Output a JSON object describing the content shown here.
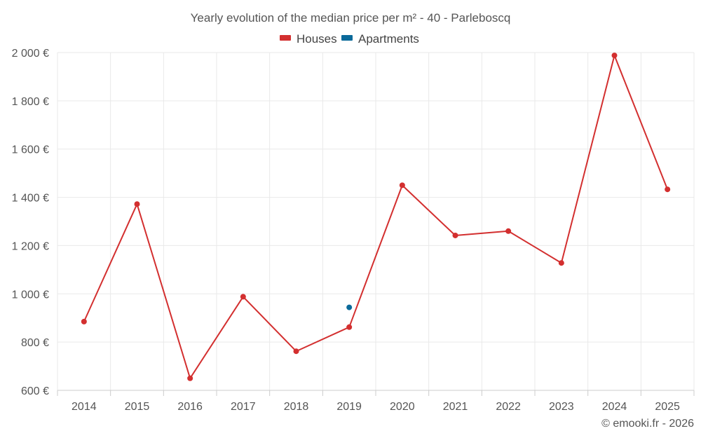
{
  "chart_data": {
    "type": "line",
    "title": "Yearly evolution of the median price per m² - 40 - Parleboscq",
    "categories": [
      "2014",
      "2015",
      "2016",
      "2017",
      "2018",
      "2019",
      "2020",
      "2021",
      "2022",
      "2023",
      "2024",
      "2025"
    ],
    "y_ticks": [
      600,
      800,
      1000,
      1200,
      1400,
      1600,
      1800,
      2000
    ],
    "y_tick_labels": [
      "600 €",
      "800 €",
      "1 000 €",
      "1 200 €",
      "1 400 €",
      "1 600 €",
      "1 800 €",
      "2 000 €"
    ],
    "ylim": [
      600,
      2000
    ],
    "grid": true,
    "legend_position": "top-center",
    "series": [
      {
        "name": "Houses",
        "color": "#d32f2f",
        "values": [
          885,
          1372,
          650,
          988,
          762,
          862,
          1450,
          1242,
          1260,
          1128,
          1988,
          1433
        ]
      },
      {
        "name": "Apartments",
        "color": "#0b6a9a",
        "values": [
          null,
          null,
          null,
          null,
          null,
          944,
          null,
          null,
          null,
          null,
          null,
          null
        ]
      }
    ],
    "credit": "© emooki.fr - 2026"
  }
}
